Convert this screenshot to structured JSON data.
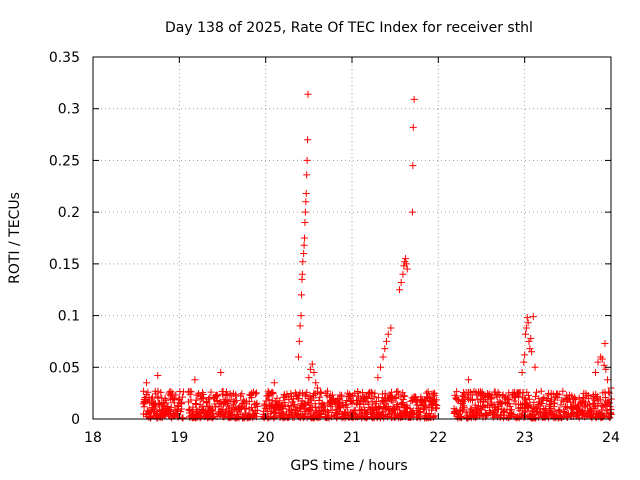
{
  "chart_data": {
    "type": "scatter",
    "title": "Day 138 of 2025, Rate Of TEC Index for receiver sthl",
    "xlabel": "GPS time / hours",
    "ylabel": "ROTI / TECUs",
    "xlim": [
      18,
      24
    ],
    "ylim": [
      0,
      0.35
    ],
    "x_ticks": [
      18,
      19,
      20,
      21,
      22,
      23,
      24
    ],
    "x_tick_labels": [
      "18",
      "19",
      "20",
      "21",
      "22",
      "23",
      "24"
    ],
    "y_ticks": [
      0,
      0.05,
      0.1,
      0.15,
      0.2,
      0.25,
      0.3,
      0.35
    ],
    "y_tick_labels": [
      "0",
      "0.05",
      "0.1",
      "0.15",
      "0.2",
      "0.25",
      "0.3",
      "0.35"
    ],
    "grid": true,
    "marker": "+",
    "series": [
      {
        "name": "ROTI",
        "color": "#ff0000",
        "points": [
          [
            20.38,
            0.06
          ],
          [
            20.39,
            0.075
          ],
          [
            20.4,
            0.09
          ],
          [
            20.41,
            0.1
          ],
          [
            20.415,
            0.12
          ],
          [
            20.42,
            0.135
          ],
          [
            20.425,
            0.14
          ],
          [
            20.43,
            0.152
          ],
          [
            20.44,
            0.16
          ],
          [
            20.445,
            0.168
          ],
          [
            20.45,
            0.175
          ],
          [
            20.455,
            0.19
          ],
          [
            20.46,
            0.2
          ],
          [
            20.465,
            0.21
          ],
          [
            20.47,
            0.218
          ],
          [
            20.475,
            0.236
          ],
          [
            20.48,
            0.25
          ],
          [
            20.485,
            0.27
          ],
          [
            20.49,
            0.314
          ],
          [
            20.5,
            0.04
          ],
          [
            20.52,
            0.048
          ],
          [
            20.54,
            0.053
          ],
          [
            20.56,
            0.045
          ],
          [
            20.58,
            0.035
          ],
          [
            20.6,
            0.03
          ],
          [
            21.3,
            0.04
          ],
          [
            21.33,
            0.05
          ],
          [
            21.36,
            0.06
          ],
          [
            21.38,
            0.068
          ],
          [
            21.4,
            0.075
          ],
          [
            21.42,
            0.082
          ],
          [
            21.45,
            0.088
          ],
          [
            21.55,
            0.125
          ],
          [
            21.57,
            0.132
          ],
          [
            21.59,
            0.14
          ],
          [
            21.6,
            0.148
          ],
          [
            21.61,
            0.152
          ],
          [
            21.62,
            0.155
          ],
          [
            21.63,
            0.15
          ],
          [
            21.64,
            0.145
          ],
          [
            21.7,
            0.2
          ],
          [
            21.705,
            0.245
          ],
          [
            21.71,
            0.282
          ],
          [
            21.72,
            0.309
          ],
          [
            22.97,
            0.045
          ],
          [
            22.99,
            0.055
          ],
          [
            23.0,
            0.062
          ],
          [
            23.01,
            0.082
          ],
          [
            23.02,
            0.088
          ],
          [
            23.03,
            0.098
          ],
          [
            23.04,
            0.093
          ],
          [
            23.05,
            0.075
          ],
          [
            23.06,
            0.068
          ],
          [
            23.07,
            0.078
          ],
          [
            23.08,
            0.065
          ],
          [
            23.1,
            0.099
          ],
          [
            23.12,
            0.05
          ],
          [
            23.82,
            0.045
          ],
          [
            23.85,
            0.055
          ],
          [
            23.88,
            0.06
          ],
          [
            23.9,
            0.058
          ],
          [
            23.92,
            0.052
          ],
          [
            23.93,
            0.073
          ],
          [
            23.94,
            0.048
          ],
          [
            23.96,
            0.038
          ],
          [
            23.98,
            0.025
          ],
          [
            24.0,
            0.03
          ],
          [
            18.75,
            0.042
          ],
          [
            18.62,
            0.035
          ],
          [
            19.18,
            0.038
          ],
          [
            19.48,
            0.045
          ],
          [
            22.35,
            0.038
          ],
          [
            20.1,
            0.035
          ]
        ]
      }
    ]
  }
}
